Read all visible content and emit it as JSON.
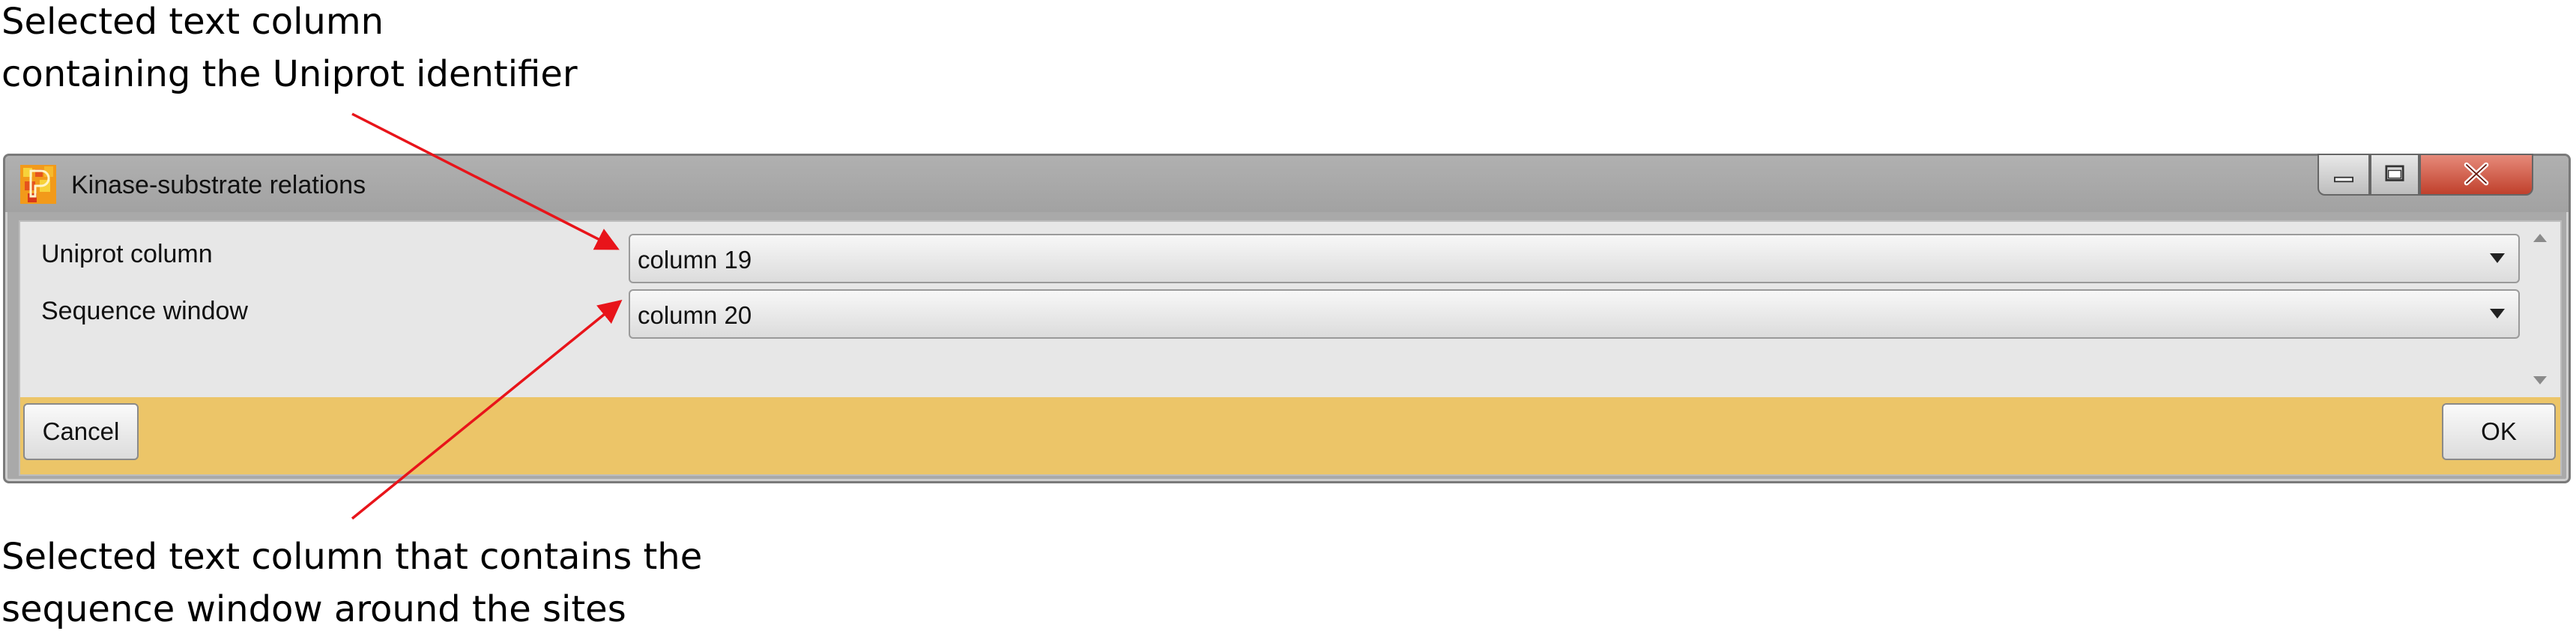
{
  "annotations": {
    "top": [
      "Selected text column",
      "containing the Uniprot identifier"
    ],
    "bottom": [
      "Selected text column that contains the",
      "sequence window around the sites"
    ]
  },
  "window": {
    "title": "Kinase-substrate relations",
    "controls": [
      "minimize-icon",
      "maximize-icon",
      "close-icon"
    ]
  },
  "form": {
    "uniprot_label": "Uniprot column",
    "uniprot_value": "column 19",
    "sequence_label": "Sequence window",
    "sequence_value": "column 20"
  },
  "footer": {
    "cancel_label": "Cancel",
    "ok_label": "OK"
  },
  "colors": {
    "footer_bar": "#ecc568",
    "arrow": "#e8141a",
    "close_button": "#c0402c"
  }
}
